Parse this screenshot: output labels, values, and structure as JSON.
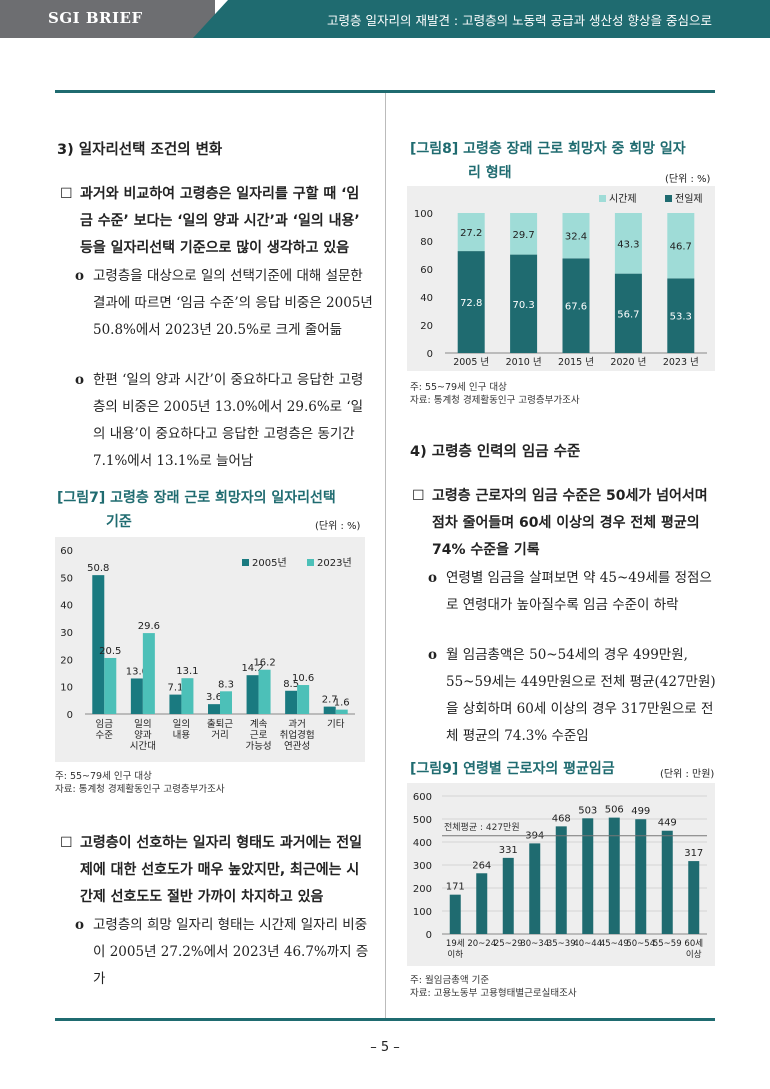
{
  "header": {
    "brand": "SGI BRIEF",
    "title": "고령층 일자리의 재발견 : 고령층의 노동력 공급과 생산성 향상을 중심으로"
  },
  "left": {
    "section3_title": "3) 일자리선택 조건의 변화",
    "box1_mark": "☐",
    "box1": "과거와 비교하여 고령층은 일자리를 구할 때 ‘임금 수준’ 보다는 ‘일의 양과 시간’과 ‘일의 내용’ 등을 일자리선택 기준으로 많이 생각하고 있음",
    "o_mark": "o",
    "o1": "고령층을 대상으로 일의 선택기준에 대해 설문한 결과에 따르면 ‘임금 수준’의 응답 비중은 2005년 50.8%에서 2023년 20.5%로 크게 줄어듦",
    "o2": "한편 ‘일의 양과 시간’이 중요하다고 응답한 고령층의 비중은 2005년 13.0%에서 29.6%로 ‘일의 내용’이 중요하다고 응답한 고령층은 동기간 7.1%에서 13.1%로 늘어남",
    "fig7_title_1": "[그림7] 고령층 장래 근로 희망자의 일자리선택",
    "fig7_title_2": "기준",
    "fig7_unit": "(단위 : %)",
    "fig7_note_1": "주: 55~79세 인구 대상",
    "fig7_note_2": "자료: 통계청 경제활동인구 고령층부가조사",
    "box2_mark": "☐",
    "box2": "고령층이 선호하는 일자리 형태도 과거에는 전일제에 대한 선호도가 매우 높았지만, 최근에는 시간제 선호도도 절반 가까이 차지하고 있음",
    "o3": "고령층의 희망 일자리 형태는 시간제 일자리 비중이 2005년 27.2%에서 2023년 46.7%까지 증가"
  },
  "right": {
    "fig8_title_1": "[그림8] 고령층 장래 근로 희망자 중 희망 일자",
    "fig8_title_2": "리 형태",
    "fig8_unit": "(단위 : %)",
    "fig8_note_1": "주: 55~79세 인구 대상",
    "fig8_note_2": "자료: 통계청 경제활동인구 고령층부가조사",
    "section4_title": "4) 고령층 인력의 임금 수준",
    "box3_mark": "☐",
    "box3": "고령층 근로자의 임금 수준은 50세가 넘어서며 점차 줄어들며 60세 이상의 경우 전체 평균의 74% 수준을 기록",
    "o_mark": "o",
    "o4": "연령별 임금을 살펴보면 약 45~49세를 정점으로 연령대가 높아질수록 임금 수준이 하락",
    "o5": "월 임금총액은 50~54세의 경우 499만원, 55~59세는 449만원으로 전체 평균(427만원)을 상회하며 60세 이상의 경우 317만원으로 전체 평균의 74.3% 수준임",
    "fig9_title": "[그림9] 연령별 근로자의 평균임금",
    "fig9_unit": "(단위 : 만원)",
    "fig9_note_1": "주: 월임금총액 기준",
    "fig9_note_2": "자료: 고용노동부 고용형태별근로실태조사"
  },
  "page_number": "–  5 –",
  "colors": {
    "dark_teal": "#1f6b70",
    "light_teal": "#4cc0b8",
    "pale_teal": "#9fdcd7",
    "teal_mid": "#1a7a80",
    "chart_bg": "#eeeeee"
  },
  "chart_data": [
    {
      "id": "fig7",
      "type": "bar",
      "categories": [
        "임금\n수준",
        "일의\n양과\n시간대",
        "일의\n내용",
        "출퇴근\n거리",
        "계속\n근로\n가능성",
        "과거\n취업경험\n연관성",
        "기타"
      ],
      "series": [
        {
          "name": "2005년",
          "values": [
            50.8,
            13.0,
            7.1,
            3.6,
            14.2,
            8.5,
            2.7
          ]
        },
        {
          "name": "2023년",
          "values": [
            20.5,
            29.6,
            13.1,
            8.3,
            16.2,
            10.6,
            1.6
          ]
        }
      ],
      "ylim": [
        0,
        60
      ],
      "yticks": [
        0,
        10,
        20,
        30,
        40,
        50,
        60
      ],
      "legend": "top-right",
      "grid": false
    },
    {
      "id": "fig8",
      "type": "bar",
      "stacked": true,
      "categories": [
        "2005 년",
        "2010 년",
        "2015 년",
        "2020 년",
        "2023 년"
      ],
      "series": [
        {
          "name": "전일제",
          "values": [
            72.8,
            70.3,
            67.6,
            56.7,
            53.3
          ]
        },
        {
          "name": "시간제",
          "values": [
            27.2,
            29.7,
            32.4,
            43.3,
            46.7
          ]
        }
      ],
      "ylim": [
        0,
        100
      ],
      "yticks": [
        0,
        20,
        40,
        60,
        80,
        100
      ],
      "legend": "top-right",
      "grid": false
    },
    {
      "id": "fig9",
      "type": "bar",
      "categories": [
        "19세\n이하",
        "20~24",
        "25~29",
        "30~34",
        "35~39",
        "40~44",
        "45~49",
        "50~54",
        "55~59",
        "60세\n이상"
      ],
      "values": [
        171,
        264,
        331,
        394,
        468,
        503,
        506,
        499,
        449,
        317
      ],
      "reference_line": {
        "label": "전체평균 : 427만원",
        "value": 427
      },
      "ylim": [
        0,
        600
      ],
      "yticks": [
        0,
        100,
        200,
        300,
        400,
        500,
        600
      ],
      "grid": true
    }
  ]
}
